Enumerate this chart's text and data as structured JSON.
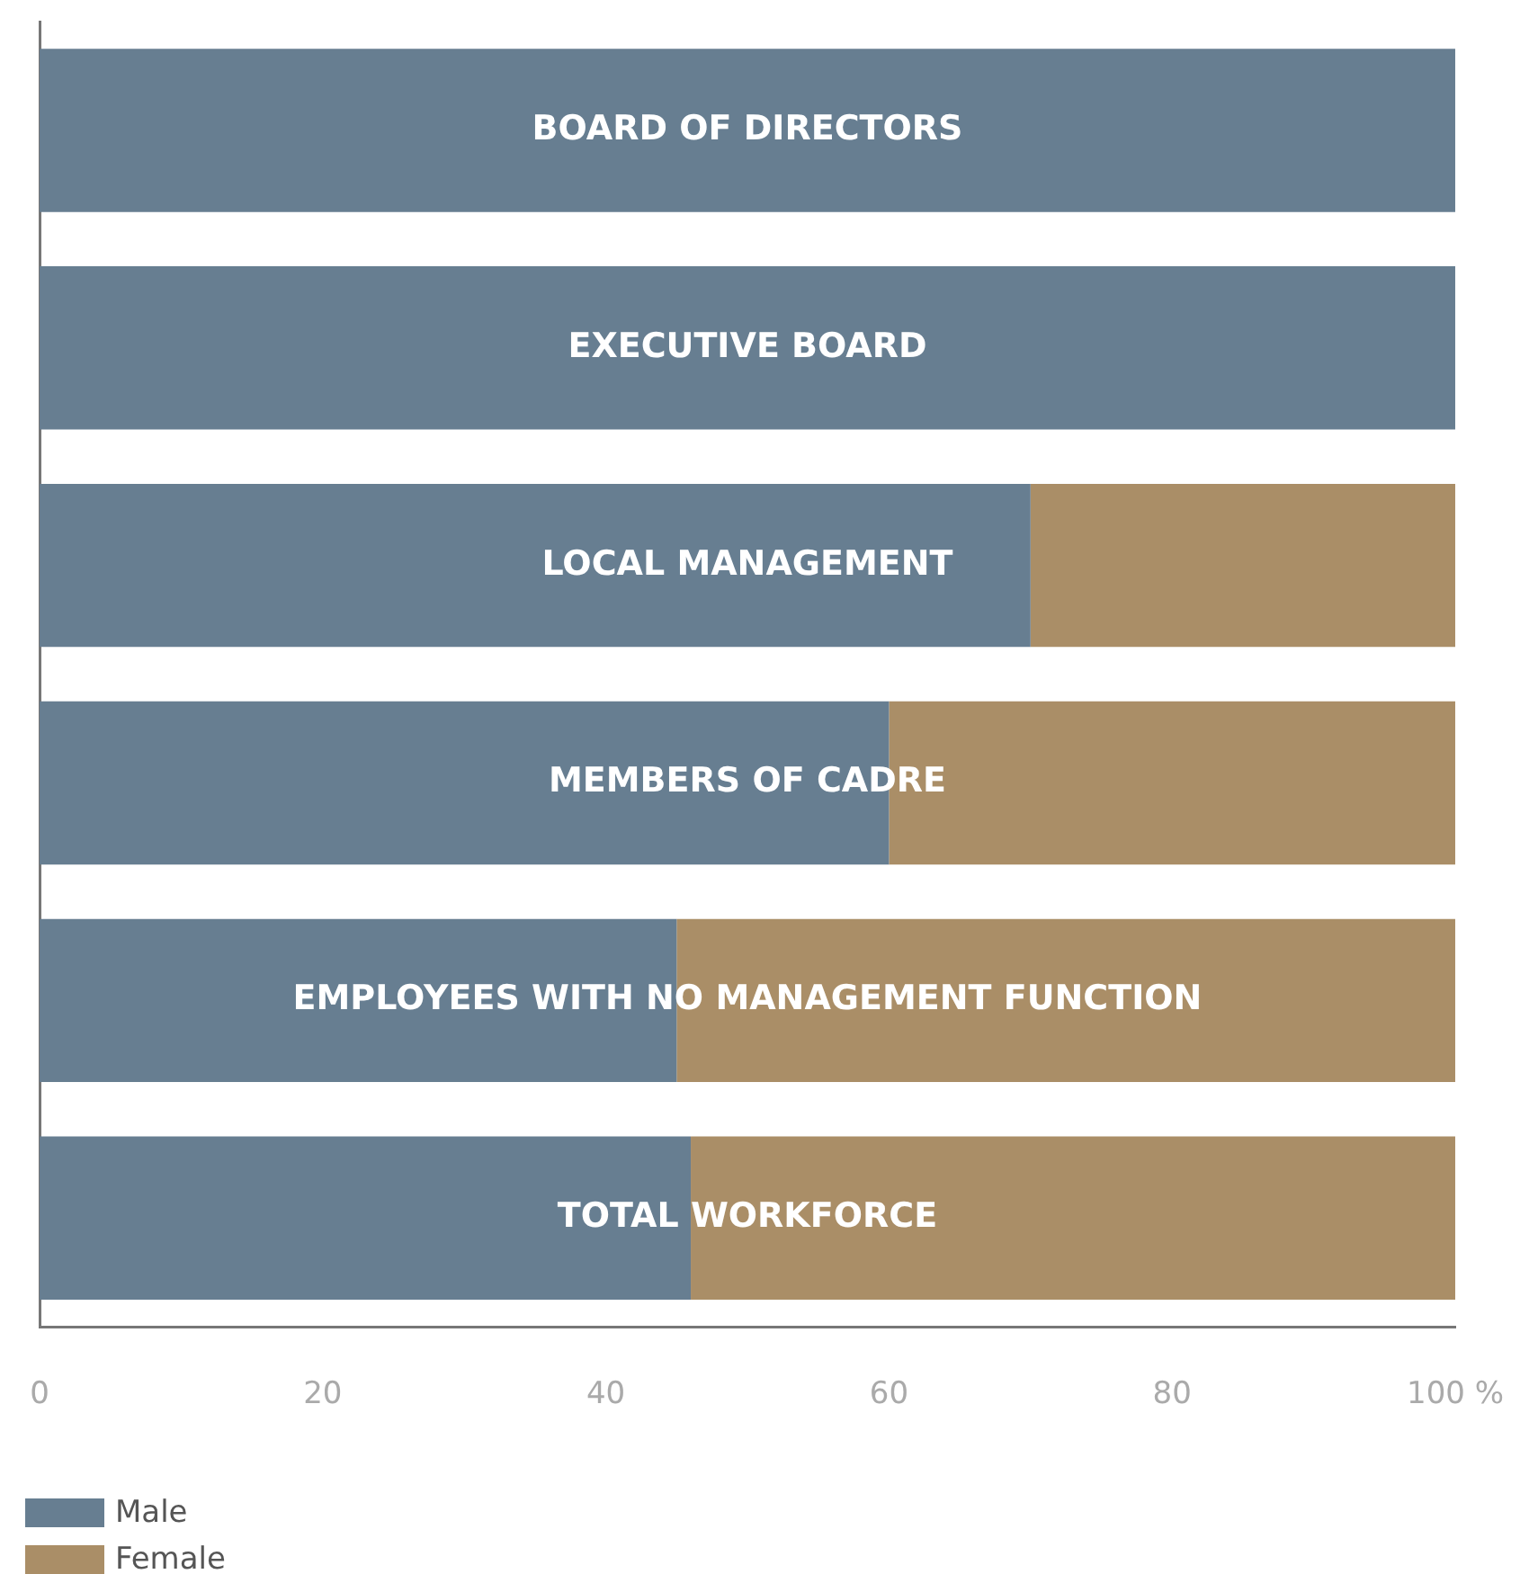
{
  "chart_data": {
    "type": "bar",
    "orientation": "horizontal",
    "stacked": true,
    "categories": [
      "BOARD OF DIRECTORS",
      "EXECUTIVE BOARD",
      "LOCAL MANAGEMENT",
      "MEMBERS OF CADRE",
      "EMPLOYEES WITH NO MANAGEMENT FUNCTION",
      "TOTAL WORKFORCE"
    ],
    "series": [
      {
        "name": "Male",
        "color": "#677e91",
        "values": [
          100,
          100,
          70,
          60,
          45,
          46
        ]
      },
      {
        "name": "Female",
        "color": "#aa8e67",
        "values": [
          0,
          0,
          30,
          40,
          55,
          54
        ]
      }
    ],
    "xlim": [
      0,
      100
    ],
    "xticks": [
      0,
      20,
      40,
      60,
      80,
      {
        "value": 100,
        "label": "100 %"
      }
    ],
    "grid": false,
    "legend": "bottom left",
    "tick_labels": "x"
  }
}
